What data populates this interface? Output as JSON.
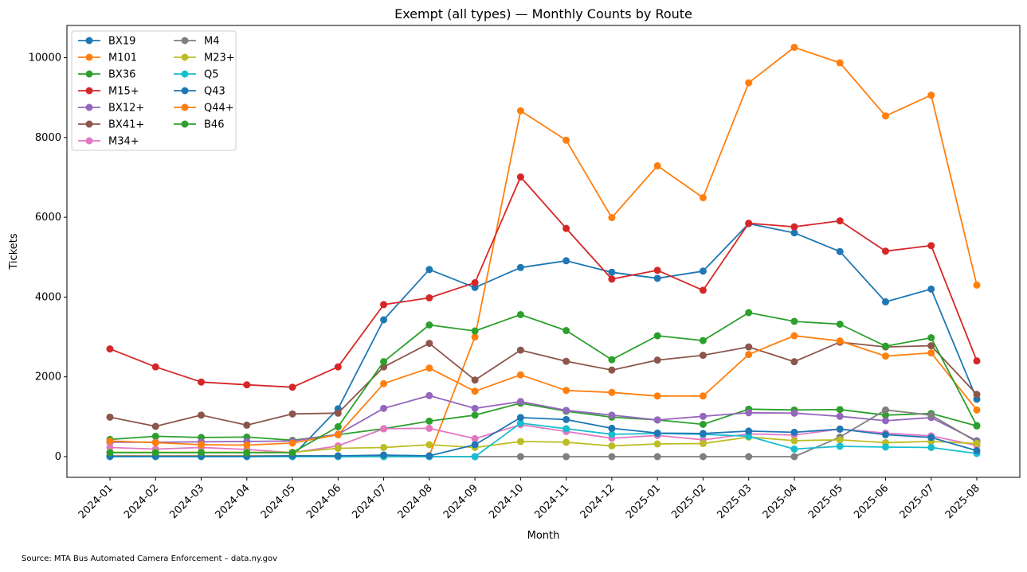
{
  "source_note": "Source: MTA Bus Automated Camera Enforcement – data.ny.gov",
  "chart_data": {
    "type": "line",
    "title": "Exempt (all types) — Monthly Counts by Route",
    "xlabel": "Month",
    "ylabel": "Tickets",
    "ylim": [
      -500,
      10800
    ],
    "yticks": [
      0,
      2000,
      4000,
      6000,
      8000,
      10000
    ],
    "grid": false,
    "legend_position": "top-left",
    "categories": [
      "2024-01",
      "2024-02",
      "2024-03",
      "2024-04",
      "2024-05",
      "2024-06",
      "2024-07",
      "2024-08",
      "2024-09",
      "2024-10",
      "2024-11",
      "2024-12",
      "2025-01",
      "2025-02",
      "2025-03",
      "2025-04",
      "2025-05",
      "2025-06",
      "2025-07",
      "2025-08"
    ],
    "series": [
      {
        "name": "BX19",
        "color": "#1f77b4",
        "values": [
          10,
          10,
          10,
          10,
          20,
          1200,
          3430,
          4690,
          4240,
          4740,
          4910,
          4620,
          4470,
          4650,
          5840,
          5610,
          5140,
          3880,
          4200,
          1440
        ]
      },
      {
        "name": "M101",
        "color": "#ff7f0e",
        "values": [
          20,
          20,
          20,
          20,
          20,
          20,
          20,
          20,
          3000,
          8670,
          7930,
          5990,
          7290,
          6490,
          9370,
          10260,
          9870,
          8540,
          9060,
          4300
        ]
      },
      {
        "name": "BX36",
        "color": "#2ca02c",
        "values": [
          430,
          510,
          480,
          490,
          410,
          550,
          700,
          890,
          1040,
          1340,
          1140,
          990,
          920,
          810,
          1190,
          1170,
          1180,
          1040,
          1080,
          770
        ]
      },
      {
        "name": "M15+",
        "color": "#d62728",
        "values": [
          2700,
          2250,
          1870,
          1800,
          1740,
          2250,
          3810,
          3980,
          4360,
          7010,
          5720,
          4450,
          4670,
          4170,
          5850,
          5760,
          5910,
          5150,
          5290,
          2400
        ]
      },
      {
        "name": "BX12+",
        "color": "#9467bd",
        "values": [
          360,
          360,
          370,
          380,
          390,
          560,
          1210,
          1530,
          1210,
          1380,
          1160,
          1040,
          920,
          1010,
          1100,
          1090,
          1010,
          900,
          980,
          400
        ]
      },
      {
        "name": "BX41+",
        "color": "#8c564b",
        "values": [
          990,
          760,
          1040,
          790,
          1070,
          1090,
          2250,
          2840,
          1920,
          2670,
          2390,
          2170,
          2420,
          2540,
          2750,
          2380,
          2870,
          2750,
          2780,
          1560
        ]
      },
      {
        "name": "M34+",
        "color": "#e377c2",
        "values": [
          230,
          190,
          230,
          180,
          100,
          270,
          700,
          710,
          450,
          800,
          630,
          460,
          530,
          420,
          570,
          540,
          690,
          590,
          520,
          280
        ]
      },
      {
        "name": "M4",
        "color": "#7f7f7f",
        "values": [
          0,
          0,
          0,
          0,
          0,
          0,
          0,
          0,
          0,
          0,
          0,
          0,
          0,
          0,
          0,
          0,
          490,
          1170,
          1040,
          370
        ]
      },
      {
        "name": "M23+",
        "color": "#bcbd22",
        "values": [
          110,
          110,
          110,
          110,
          110,
          210,
          230,
          300,
          230,
          380,
          360,
          270,
          320,
          330,
          490,
          400,
          420,
          350,
          380,
          330
        ]
      },
      {
        "name": "Q5",
        "color": "#17becf",
        "values": [
          0,
          0,
          0,
          0,
          0,
          0,
          0,
          0,
          0,
          840,
          700,
          560,
          580,
          560,
          510,
          190,
          260,
          240,
          230,
          80
        ]
      },
      {
        "name": "Q43",
        "color": "#1f77b4",
        "values": [
          10,
          10,
          10,
          10,
          20,
          20,
          40,
          20,
          300,
          980,
          930,
          710,
          590,
          580,
          640,
          610,
          690,
          550,
          480,
          150
        ]
      },
      {
        "name": "Q44+",
        "color": "#ff7f0e",
        "values": [
          390,
          350,
          300,
          290,
          340,
          550,
          1830,
          2220,
          1640,
          2050,
          1660,
          1610,
          1520,
          1520,
          2560,
          3030,
          2900,
          2520,
          2600,
          1170
        ]
      },
      {
        "name": "B46",
        "color": "#2ca02c",
        "values": [
          100,
          100,
          100,
          100,
          100,
          750,
          2380,
          3300,
          3150,
          3560,
          3160,
          2430,
          3030,
          2910,
          3610,
          3390,
          3320,
          2770,
          2980,
          780
        ]
      }
    ]
  }
}
